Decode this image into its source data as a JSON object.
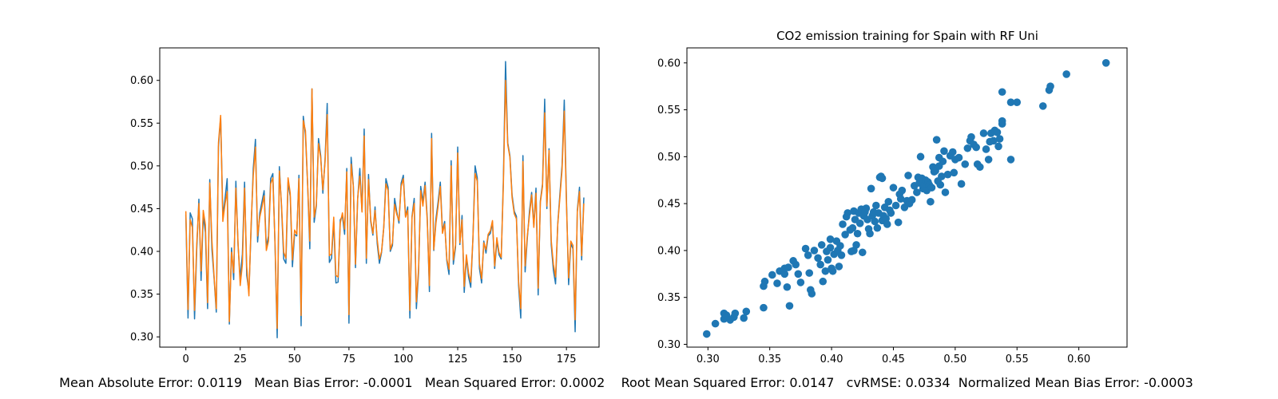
{
  "chart_data": [
    {
      "type": "line",
      "title": "",
      "xlabel": "",
      "ylabel": "",
      "xlim": [
        -12,
        190
      ],
      "ylim": [
        0.288,
        0.638
      ],
      "xticks": [
        0,
        25,
        50,
        75,
        100,
        125,
        150,
        175
      ],
      "yticks": [
        0.3,
        0.35,
        0.4,
        0.45,
        0.5,
        0.55,
        0.6
      ],
      "grid": false,
      "legend": "none",
      "colors": [
        "#1f77b4",
        "#ff7f0e"
      ],
      "series": [
        {
          "values": [
            0.443,
            0.322,
            0.445,
            0.438,
            0.321,
            0.402,
            0.461,
            0.366,
            0.442,
            0.422,
            0.333,
            0.484,
            0.402,
            0.368,
            0.329,
            0.522,
            0.557,
            0.442,
            0.461,
            0.485,
            0.315,
            0.404,
            0.367,
            0.482,
            0.407,
            0.368,
            0.397,
            0.481,
            0.372,
            0.353,
            0.426,
            0.497,
            0.531,
            0.411,
            0.445,
            0.458,
            0.471,
            0.405,
            0.418,
            0.485,
            0.491,
            0.408,
            0.299,
            0.499,
            0.451,
            0.391,
            0.386,
            0.481,
            0.464,
            0.382,
            0.42,
            0.418,
            0.489,
            0.313,
            0.558,
            0.536,
            0.478,
            0.403,
            0.59,
            0.434,
            0.453,
            0.532,
            0.512,
            0.468,
            0.507,
            0.573,
            0.387,
            0.392,
            0.435,
            0.363,
            0.364,
            0.437,
            0.441,
            0.42,
            0.497,
            0.316,
            0.51,
            0.477,
            0.381,
            0.461,
            0.497,
            0.447,
            0.543,
            0.386,
            0.49,
            0.435,
            0.419,
            0.452,
            0.409,
            0.386,
            0.399,
            0.428,
            0.485,
            0.475,
            0.4,
            0.407,
            0.462,
            0.446,
            0.433,
            0.48,
            0.489,
            0.441,
            0.452,
            0.322,
            0.441,
            0.462,
            0.333,
            0.375,
            0.476,
            0.458,
            0.481,
            0.439,
            0.353,
            0.538,
            0.401,
            0.438,
            0.458,
            0.481,
            0.423,
            0.435,
            0.389,
            0.373,
            0.506,
            0.385,
            0.405,
            0.522,
            0.408,
            0.442,
            0.352,
            0.393,
            0.37,
            0.358,
            0.415,
            0.5,
            0.486,
            0.38,
            0.363,
            0.412,
            0.398,
            0.418,
            0.421,
            0.434,
            0.38,
            0.412,
            0.396,
            0.391,
            0.484,
            0.622,
            0.527,
            0.512,
            0.466,
            0.447,
            0.441,
            0.36,
            0.322,
            0.512,
            0.376,
            0.415,
            0.447,
            0.469,
            0.43,
            0.474,
            0.349,
            0.459,
            0.479,
            0.578,
            0.45,
            0.52,
            0.408,
            0.378,
            0.362,
            0.432,
            0.467,
            0.501,
            0.577,
            0.461,
            0.361,
            0.409,
            0.403,
            0.306,
            0.448,
            0.475,
            0.39,
            0.463
          ]
        },
        {
          "values": [
            0.447,
            0.332,
            0.437,
            0.428,
            0.331,
            0.408,
            0.456,
            0.377,
            0.448,
            0.431,
            0.34,
            0.48,
            0.412,
            0.37,
            0.333,
            0.527,
            0.559,
            0.435,
            0.455,
            0.47,
            0.318,
            0.399,
            0.375,
            0.474,
            0.41,
            0.36,
            0.385,
            0.474,
            0.382,
            0.348,
            0.432,
            0.489,
            0.522,
            0.418,
            0.44,
            0.452,
            0.465,
            0.401,
            0.412,
            0.479,
            0.486,
            0.41,
            0.31,
            0.494,
            0.454,
            0.399,
            0.392,
            0.486,
            0.468,
            0.39,
            0.425,
            0.42,
            0.485,
            0.325,
            0.553,
            0.541,
            0.478,
            0.412,
            0.59,
            0.44,
            0.455,
            0.526,
            0.509,
            0.472,
            0.504,
            0.56,
            0.395,
            0.397,
            0.44,
            0.372,
            0.37,
            0.433,
            0.445,
            0.426,
            0.493,
            0.326,
            0.502,
            0.476,
            0.385,
            0.462,
            0.488,
            0.446,
            0.535,
            0.392,
            0.484,
            0.437,
            0.421,
            0.448,
            0.414,
            0.391,
            0.4,
            0.428,
            0.479,
            0.471,
            0.402,
            0.41,
            0.455,
            0.443,
            0.436,
            0.476,
            0.485,
            0.44,
            0.448,
            0.331,
            0.44,
            0.456,
            0.341,
            0.379,
            0.471,
            0.453,
            0.477,
            0.436,
            0.36,
            0.532,
            0.402,
            0.433,
            0.453,
            0.476,
            0.421,
            0.432,
            0.391,
            0.379,
            0.5,
            0.39,
            0.408,
            0.515,
            0.41,
            0.437,
            0.359,
            0.396,
            0.375,
            0.364,
            0.415,
            0.491,
            0.482,
            0.386,
            0.368,
            0.41,
            0.402,
            0.42,
            0.424,
            0.436,
            0.383,
            0.416,
            0.399,
            0.393,
            0.478,
            0.6,
            0.525,
            0.51,
            0.463,
            0.444,
            0.438,
            0.365,
            0.333,
            0.505,
            0.383,
            0.418,
            0.442,
            0.466,
            0.428,
            0.468,
            0.357,
            0.457,
            0.476,
            0.562,
            0.453,
            0.518,
            0.413,
            0.385,
            0.37,
            0.431,
            0.463,
            0.496,
            0.564,
            0.456,
            0.369,
            0.412,
            0.407,
            0.32,
            0.446,
            0.47,
            0.395,
            0.456
          ]
        }
      ]
    },
    {
      "type": "scatter",
      "title": "CO2 emission training for Spain with RF Uni",
      "xlabel": "",
      "ylabel": "",
      "xlim": [
        0.283,
        0.639
      ],
      "ylim": [
        0.297,
        0.616
      ],
      "xticks": [
        0.3,
        0.35,
        0.4,
        0.45,
        0.5,
        0.55,
        0.6
      ],
      "yticks": [
        0.3,
        0.35,
        0.4,
        0.45,
        0.5,
        0.55,
        0.6
      ],
      "grid": false,
      "legend": "none",
      "colors": [
        "#1f77b4"
      ],
      "points": [
        [
          0.299,
          0.311
        ],
        [
          0.306,
          0.322
        ],
        [
          0.313,
          0.327
        ],
        [
          0.315,
          0.331
        ],
        [
          0.318,
          0.326
        ],
        [
          0.321,
          0.329
        ],
        [
          0.313,
          0.333
        ],
        [
          0.322,
          0.333
        ],
        [
          0.329,
          0.328
        ],
        [
          0.331,
          0.335
        ],
        [
          0.345,
          0.339
        ],
        [
          0.345,
          0.362
        ],
        [
          0.346,
          0.367
        ],
        [
          0.352,
          0.374
        ],
        [
          0.356,
          0.365
        ],
        [
          0.358,
          0.378
        ],
        [
          0.362,
          0.375
        ],
        [
          0.362,
          0.381
        ],
        [
          0.365,
          0.382
        ],
        [
          0.364,
          0.361
        ],
        [
          0.366,
          0.341
        ],
        [
          0.369,
          0.389
        ],
        [
          0.371,
          0.385
        ],
        [
          0.373,
          0.375
        ],
        [
          0.375,
          0.366
        ],
        [
          0.379,
          0.402
        ],
        [
          0.381,
          0.395
        ],
        [
          0.382,
          0.376
        ],
        [
          0.383,
          0.358
        ],
        [
          0.384,
          0.354
        ],
        [
          0.386,
          0.4
        ],
        [
          0.389,
          0.392
        ],
        [
          0.391,
          0.385
        ],
        [
          0.392,
          0.406
        ],
        [
          0.393,
          0.367
        ],
        [
          0.395,
          0.378
        ],
        [
          0.396,
          0.399
        ],
        [
          0.397,
          0.39
        ],
        [
          0.399,
          0.403
        ],
        [
          0.399,
          0.412
        ],
        [
          0.401,
          0.378
        ],
        [
          0.402,
          0.396
        ],
        [
          0.404,
          0.41
        ],
        [
          0.405,
          0.4
        ],
        [
          0.406,
          0.383
        ],
        [
          0.407,
          0.405
        ],
        [
          0.409,
          0.428
        ],
        [
          0.411,
          0.417
        ],
        [
          0.412,
          0.436
        ],
        [
          0.413,
          0.44
        ],
        [
          0.415,
          0.422
        ],
        [
          0.416,
          0.399
        ],
        [
          0.417,
          0.424
        ],
        [
          0.418,
          0.442
        ],
        [
          0.419,
          0.433
        ],
        [
          0.42,
          0.406
        ],
        [
          0.421,
          0.418
        ],
        [
          0.422,
          0.44
        ],
        [
          0.423,
          0.429
        ],
        [
          0.424,
          0.444
        ],
        [
          0.425,
          0.398
        ],
        [
          0.426,
          0.437
        ],
        [
          0.427,
          0.442
        ],
        [
          0.428,
          0.445
        ],
        [
          0.429,
          0.433
        ],
        [
          0.43,
          0.423
        ],
        [
          0.431,
          0.418
        ],
        [
          0.432,
          0.466
        ],
        [
          0.433,
          0.437
        ],
        [
          0.434,
          0.441
        ],
        [
          0.435,
          0.431
        ],
        [
          0.436,
          0.448
        ],
        [
          0.437,
          0.424
        ],
        [
          0.438,
          0.44
        ],
        [
          0.439,
          0.478
        ],
        [
          0.44,
          0.479
        ],
        [
          0.441,
          0.432
        ],
        [
          0.442,
          0.437
        ],
        [
          0.443,
          0.446
        ],
        [
          0.444,
          0.434
        ],
        [
          0.445,
          0.428
        ],
        [
          0.446,
          0.452
        ],
        [
          0.447,
          0.443
        ],
        [
          0.448,
          0.44
        ],
        [
          0.45,
          0.467
        ],
        [
          0.452,
          0.448
        ],
        [
          0.454,
          0.43
        ],
        [
          0.455,
          0.46
        ],
        [
          0.457,
          0.464
        ],
        [
          0.459,
          0.446
        ],
        [
          0.461,
          0.453
        ],
        [
          0.462,
          0.48
        ],
        [
          0.463,
          0.45
        ],
        [
          0.465,
          0.454
        ],
        [
          0.467,
          0.469
        ],
        [
          0.469,
          0.462
        ],
        [
          0.471,
          0.472
        ],
        [
          0.472,
          0.5
        ],
        [
          0.473,
          0.477
        ],
        [
          0.474,
          0.466
        ],
        [
          0.475,
          0.469
        ],
        [
          0.476,
          0.475
        ],
        [
          0.477,
          0.464
        ],
        [
          0.478,
          0.473
        ],
        [
          0.479,
          0.47
        ],
        [
          0.48,
          0.452
        ],
        [
          0.481,
          0.467
        ],
        [
          0.482,
          0.489
        ],
        [
          0.483,
          0.484
        ],
        [
          0.484,
          0.485
        ],
        [
          0.485,
          0.518
        ],
        [
          0.486,
          0.474
        ],
        [
          0.487,
          0.49
        ],
        [
          0.488,
          0.47
        ],
        [
          0.489,
          0.479
        ],
        [
          0.49,
          0.495
        ],
        [
          0.491,
          0.506
        ],
        [
          0.492,
          0.462
        ],
        [
          0.494,
          0.481
        ],
        [
          0.496,
          0.501
        ],
        [
          0.498,
          0.505
        ],
        [
          0.5,
          0.497
        ],
        [
          0.503,
          0.499
        ],
        [
          0.505,
          0.471
        ],
        [
          0.508,
          0.492
        ],
        [
          0.51,
          0.509
        ],
        [
          0.512,
          0.517
        ],
        [
          0.513,
          0.521
        ],
        [
          0.515,
          0.513
        ],
        [
          0.517,
          0.51
        ],
        [
          0.518,
          0.492
        ],
        [
          0.52,
          0.489
        ],
        [
          0.523,
          0.525
        ],
        [
          0.525,
          0.508
        ],
        [
          0.527,
          0.497
        ],
        [
          0.528,
          0.516
        ],
        [
          0.529,
          0.525
        ],
        [
          0.531,
          0.517
        ],
        [
          0.532,
          0.528
        ],
        [
          0.534,
          0.526
        ],
        [
          0.535,
          0.511
        ],
        [
          0.536,
          0.519
        ],
        [
          0.538,
          0.535
        ],
        [
          0.538,
          0.538
        ],
        [
          0.538,
          0.569
        ],
        [
          0.545,
          0.558
        ],
        [
          0.55,
          0.558
        ],
        [
          0.571,
          0.554
        ],
        [
          0.576,
          0.571
        ],
        [
          0.577,
          0.575
        ],
        [
          0.59,
          0.588
        ],
        [
          0.622,
          0.6
        ],
        [
          0.545,
          0.497
        ],
        [
          0.499,
          0.483
        ],
        [
          0.487,
          0.499
        ],
        [
          0.47,
          0.478
        ],
        [
          0.456,
          0.455
        ],
        [
          0.441,
          0.477
        ],
        [
          0.427,
          0.441
        ],
        [
          0.418,
          0.4
        ],
        [
          0.408,
          0.395
        ],
        [
          0.4,
          0.381
        ]
      ]
    }
  ],
  "metrics_line": "Mean Absolute Error: 0.0119   Mean Bias Error: -0.0001   Mean Squared Error: 0.0002    Root Mean Squared Error: 0.0147   cvRMSE: 0.0334  Normalized Mean Bias Error: -0.0003"
}
